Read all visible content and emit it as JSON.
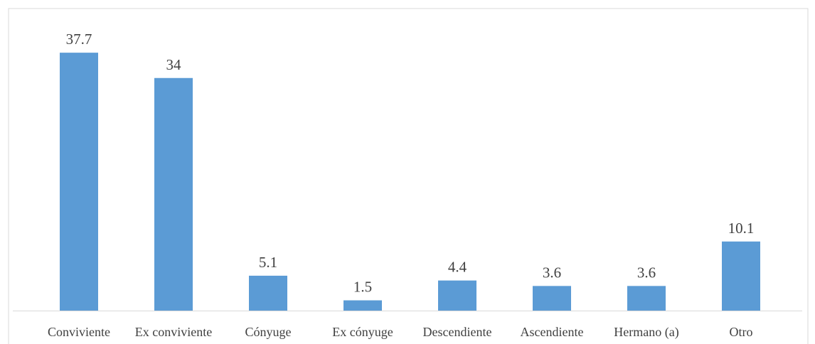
{
  "chart_data": {
    "type": "bar",
    "categories": [
      "Conviviente",
      "Ex conviviente",
      "Cónyuge",
      "Ex cónyuge",
      "Descendiente",
      "Ascendiente",
      "Hermano (a)",
      "Otro"
    ],
    "values": [
      37.7,
      34,
      5.1,
      1.5,
      4.4,
      3.6,
      3.6,
      10.1
    ],
    "color": "#5b9bd5",
    "ylim": [
      0,
      40
    ]
  }
}
